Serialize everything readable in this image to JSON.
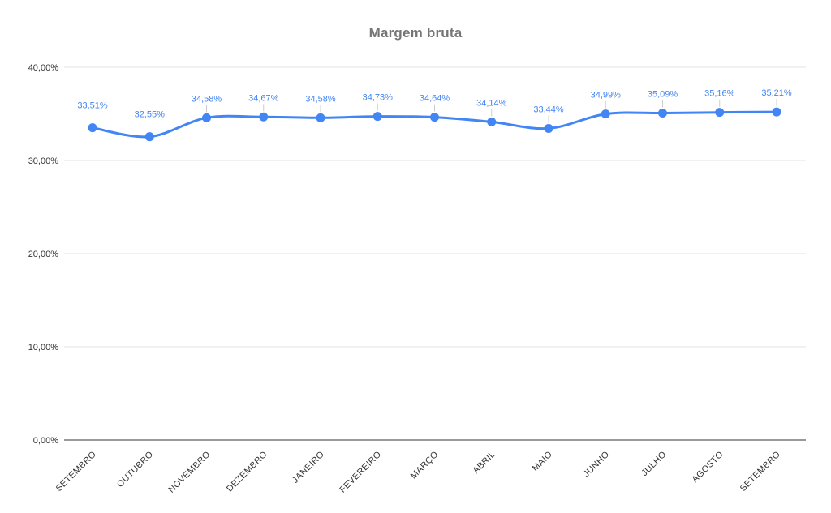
{
  "chart_data": {
    "type": "line",
    "title": "Margem bruta",
    "categories": [
      "SETEMBRO",
      "OUTUBRO",
      "NOVEMBRO",
      "DEZEMBRO",
      "JANEIRO",
      "FEVEREIRO",
      "MARÇO",
      "ABRIL",
      "MAIO",
      "JUNHO",
      "JULHO",
      "AGOSTO",
      "SETEMBRO"
    ],
    "series": [
      {
        "name": "Margem bruta",
        "values": [
          33.51,
          32.55,
          34.58,
          34.67,
          34.58,
          34.73,
          34.64,
          34.14,
          33.44,
          34.99,
          35.09,
          35.16,
          35.21
        ],
        "labels": [
          "33,51%",
          "32,55%",
          "34,58%",
          "34,67%",
          "34,58%",
          "34,73%",
          "34,64%",
          "34,14%",
          "33,44%",
          "34,99%",
          "35,09%",
          "35,16%",
          "35,21%"
        ]
      }
    ],
    "xlabel": "",
    "ylabel": "",
    "ylim": [
      0,
      40
    ],
    "y_ticks": [
      {
        "value": 0,
        "label": "0,00%"
      },
      {
        "value": 10,
        "label": "10,00%"
      },
      {
        "value": 20,
        "label": "20,00%"
      },
      {
        "value": 30,
        "label": "30,00%"
      },
      {
        "value": 40,
        "label": "40,00%"
      }
    ],
    "grid": true,
    "legend_position": "none",
    "line_style": "smooth",
    "colors": {
      "series": "#4285F4",
      "data_label": "#4285F4",
      "title": "#757575",
      "grid_line": "#E3E3E3",
      "axis_line": "#333333",
      "axis_text": "#333333",
      "leader_line": "#CCCCCC",
      "background": "#FFFFFF"
    }
  }
}
